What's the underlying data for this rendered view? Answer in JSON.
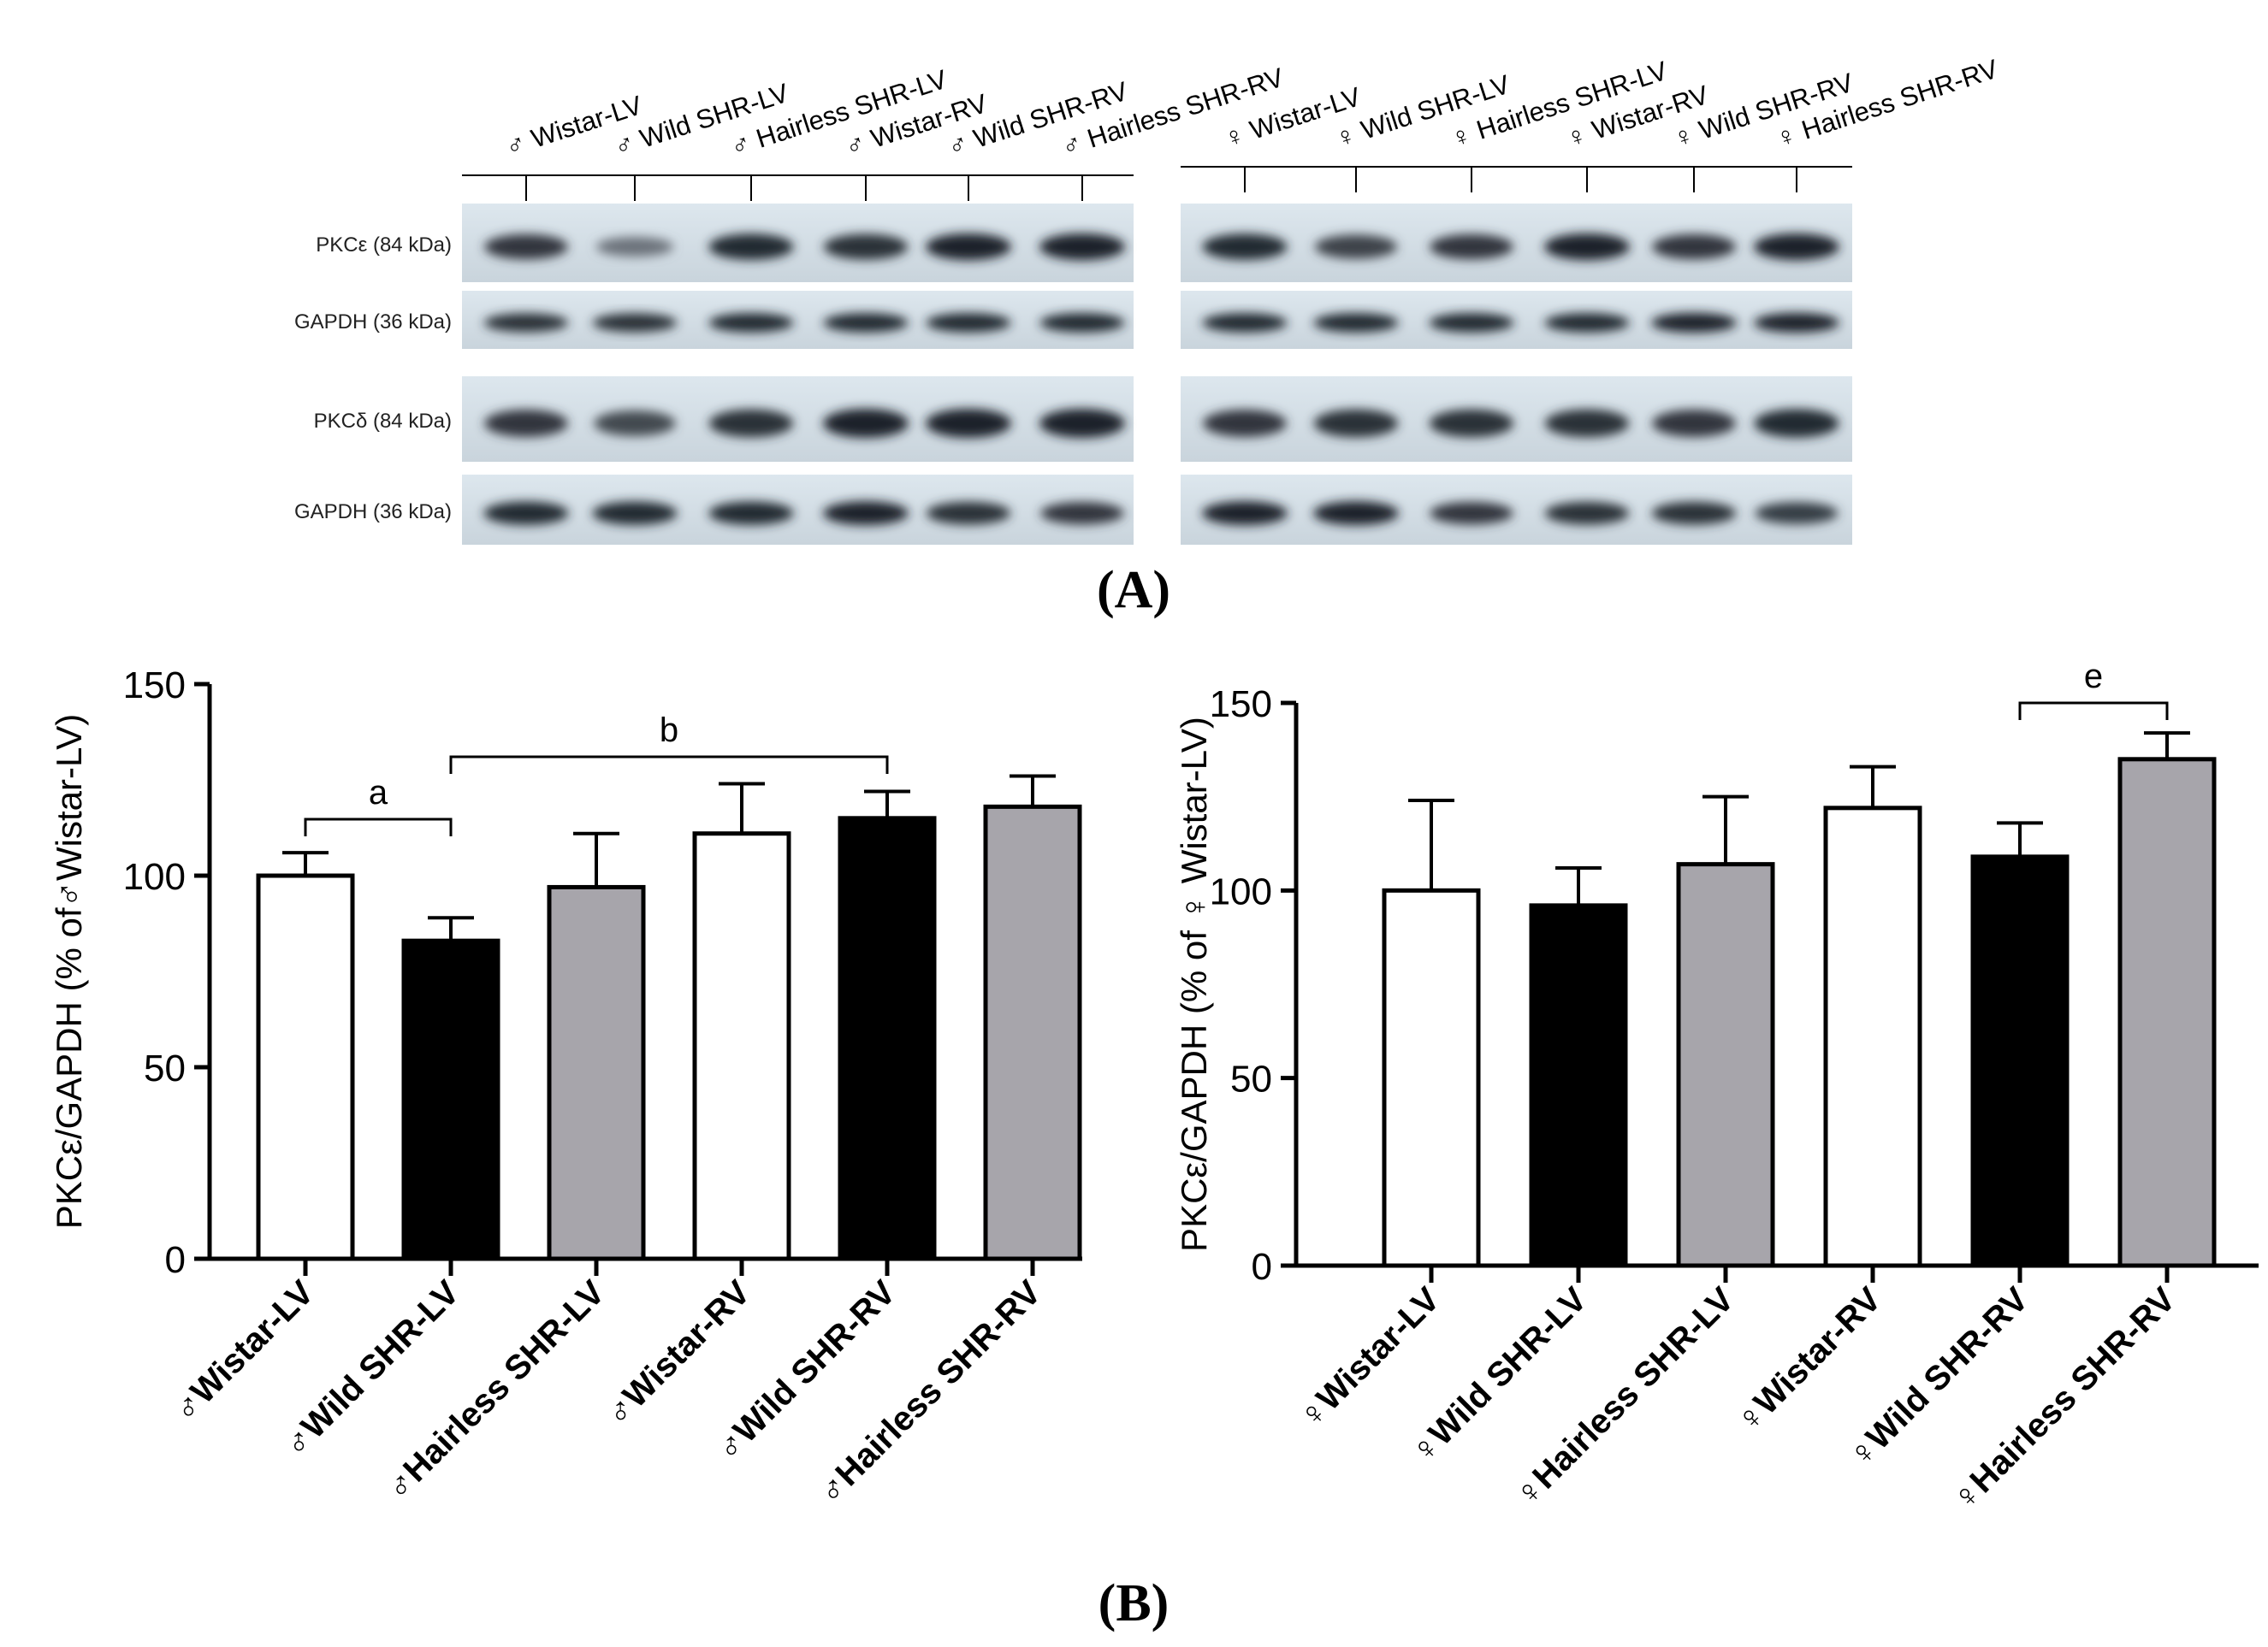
{
  "blot": {
    "panel_label": "(A)",
    "male_headers": [
      "♂ Wistar-LV",
      "♂ Wild SHR-LV",
      "♂ Hairless SHR-LV",
      "♂ Wistar-RV",
      "♂ Wild SHR-RV",
      "♂ Hairless SHR-RV"
    ],
    "female_headers": [
      "♀ Wistar-LV",
      "♀ Wild SHR-LV",
      "♀ Hairless SHR-LV",
      "♀ Wistar-RV",
      "♀ Wild SHR-RV",
      "♀ Hairless SHR-RV"
    ],
    "row_labels": [
      "PKCε (84 kDa)",
      "GAPDH (36 kDa)",
      "PKCδ (84 kDa)",
      "GAPDH (36 kDa)"
    ],
    "band_intensity": {
      "male": [
        [
          0.85,
          0.35,
          0.95,
          0.9,
          1.0,
          1.0
        ],
        [
          0.9,
          0.9,
          0.95,
          0.95,
          0.95,
          0.95
        ],
        [
          0.85,
          0.7,
          0.9,
          1.0,
          1.0,
          1.0
        ],
        [
          0.95,
          0.95,
          0.95,
          1.0,
          0.9,
          0.85
        ]
      ],
      "female": [
        [
          0.95,
          0.75,
          0.85,
          1.0,
          0.85,
          1.0
        ],
        [
          0.95,
          0.95,
          0.95,
          0.95,
          1.0,
          1.0
        ],
        [
          0.85,
          0.9,
          0.9,
          0.9,
          0.85,
          0.95
        ],
        [
          1.0,
          1.0,
          0.85,
          0.9,
          0.9,
          0.8
        ]
      ]
    }
  },
  "panel_b_label": "(B)",
  "chart_data": [
    {
      "type": "bar",
      "ylabel": "PKCε/GAPDH (% of♂Wistar-LV)",
      "categories": [
        "♂Wistar-LV",
        "♂Wild SHR-LV",
        "♂Hairless SHR-LV",
        "♂Wistar-RV",
        "♂Wild SHR-RV",
        "♂Hairless SHR-RV"
      ],
      "values": [
        100,
        83,
        97,
        111,
        115,
        118
      ],
      "errors": [
        6,
        6,
        14,
        13,
        7,
        8
      ],
      "fill_colors": [
        "#ffffff",
        "#000000",
        "#a7a5ab",
        "#ffffff",
        "#000000",
        "#a7a5ab"
      ],
      "ylim": [
        0,
        150
      ],
      "yticks": [
        0,
        50,
        100,
        150
      ],
      "annotations": [
        {
          "label": "a",
          "from": 0,
          "to": 1
        },
        {
          "label": "b",
          "from": 1,
          "to": 4
        }
      ]
    },
    {
      "type": "bar",
      "ylabel": "PKCε/GAPDH (% of ♀ Wistar-LV)",
      "categories": [
        "♀Wistar-LV",
        "♀Wild SHR-LV",
        "♀Hairless SHR-LV",
        "♀Wistar-RV",
        "♀Wild SHR-RV",
        "♀Hairless SHR-RV"
      ],
      "values": [
        100,
        96,
        107,
        122,
        109,
        135
      ],
      "errors": [
        24,
        10,
        18,
        11,
        9,
        7
      ],
      "fill_colors": [
        "#ffffff",
        "#000000",
        "#a7a5ab",
        "#ffffff",
        "#000000",
        "#a7a5ab"
      ],
      "ylim": [
        0,
        150
      ],
      "yticks": [
        0,
        50,
        100,
        150
      ],
      "annotations": [
        {
          "label": "e",
          "from": 4,
          "to": 5
        }
      ]
    }
  ]
}
